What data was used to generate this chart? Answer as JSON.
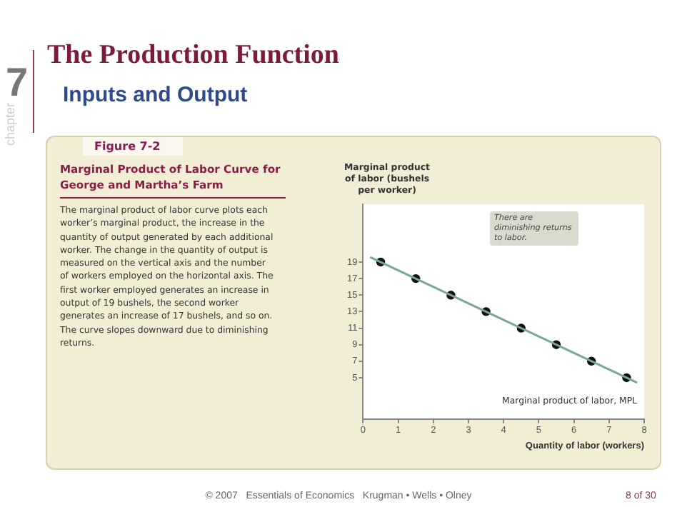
{
  "chart_data": {
    "type": "scatter",
    "title": "The Production Function",
    "subtitle": "Inputs and Output",
    "xlabel": "Quantity of labor (workers)",
    "ylabel": "Marginal product of labor (bushels per worker)",
    "series": [
      {
        "type": "line",
        "name": "Marginal product of labor, MPL",
        "color": "#7aa88c",
        "marker": "none",
        "x": [
          0.2,
          7.8
        ],
        "values": [
          19.6,
          4.4
        ]
      },
      {
        "color": "#111111",
        "x": [
          0.5,
          1.5,
          2.5,
          3.5,
          4.5,
          5.5,
          6.5,
          7.5
        ],
        "values": [
          19,
          17,
          15,
          13,
          11,
          9,
          7,
          5
        ]
      }
    ],
    "xlim": [
      0,
      8
    ],
    "xticks": [
      0,
      1,
      2,
      3,
      4,
      5,
      6,
      7,
      8
    ],
    "ylim": [
      0,
      26
    ],
    "yticks": [
      5,
      7,
      9,
      11,
      13,
      15,
      17,
      19
    ],
    "grid": false,
    "legend": false,
    "marker": "circle",
    "annotations": [
      "7",
      "chapter",
      "Figure 7-2",
      "Marginal Product of Labor Curve for George and Martha’s Farm",
      "The marginal product of labor curve plots each worker’s marginal product, the increase in the quantity of output generated by each additional worker. The change in the quantity of output is measured on the vertical axis and the number of workers employed on the horizontal axis. The first worker employed generates an increase in output of 19 bushels, the second worker generates an increase of 17 bushels, and so on. The curve slopes downward due to diminishing returns.",
      "There are diminishing returns to labor.",
      "© 2007   Essentials of Economics   Krugman • Wells • Olney",
      "8 of 30"
    ]
  }
}
